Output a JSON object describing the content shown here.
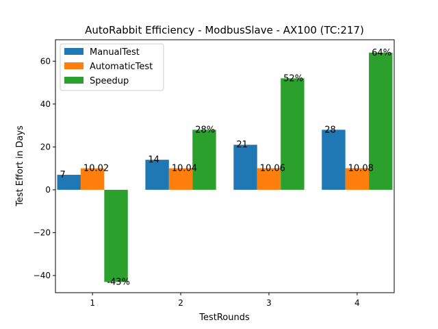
{
  "chart_data": {
    "type": "bar",
    "title": "AutoRabbit Efficiency - ModbusSlave - AX100 (TC:217)",
    "xlabel": "TestRounds",
    "ylabel": "Test Effort in Days",
    "categories": [
      "1",
      "2",
      "3",
      "4"
    ],
    "ylim": [
      -48,
      70
    ],
    "yticks": [
      -40,
      -20,
      0,
      20,
      40,
      60
    ],
    "yticks_text": [
      "−40",
      "−20",
      "0",
      "20",
      "40",
      "60"
    ],
    "legend_position": "top-left",
    "grid": false,
    "series": [
      {
        "name": "ManualTest",
        "color": "#1f77b4",
        "values": [
          7,
          14,
          21,
          28
        ],
        "labels": [
          "7",
          "14",
          "21",
          "28"
        ]
      },
      {
        "name": "AutomaticTest",
        "color": "#ff7f0e",
        "values": [
          10.02,
          10.04,
          10.06,
          10.08
        ],
        "labels": [
          "10.02",
          "10.04",
          "10.06",
          "10.08"
        ]
      },
      {
        "name": "Speedup",
        "color": "#2ca02c",
        "values": [
          -43,
          28,
          52,
          64
        ],
        "labels": [
          "-43%",
          "28%",
          "52%",
          "64%"
        ]
      }
    ]
  }
}
